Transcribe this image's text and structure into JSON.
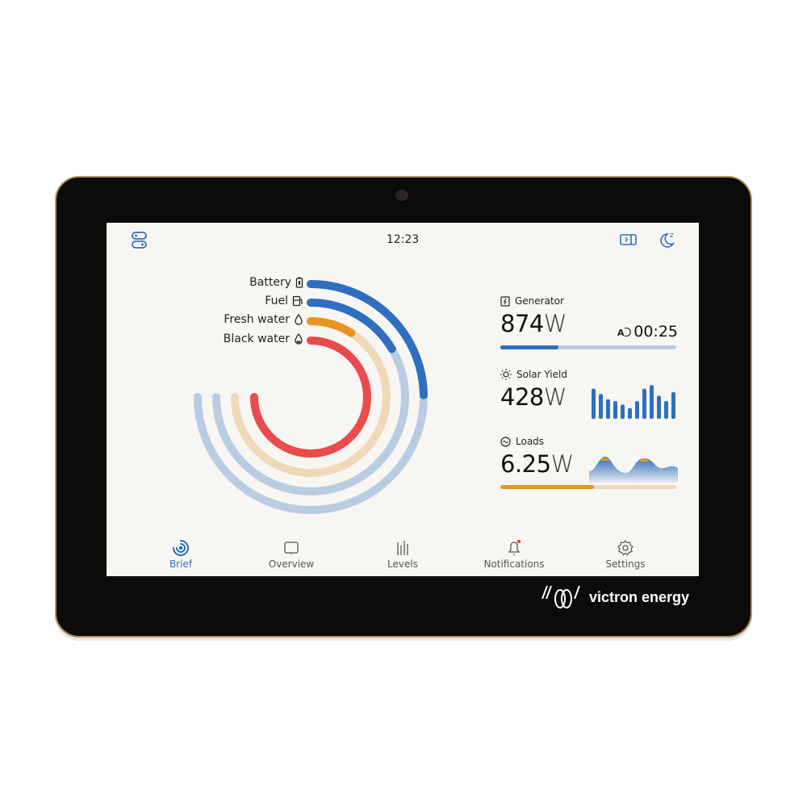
{
  "header": {
    "time": "12:23",
    "left_icon": "toggles-icon",
    "right_icons": [
      "sidebar-toggle-icon",
      "sleep-moon-icon"
    ]
  },
  "levels": [
    {
      "label": "Battery",
      "icon": "battery-icon",
      "percent": 33,
      "color": "#2f6fbf",
      "track": "#b9cde2"
    },
    {
      "label": "Fuel",
      "icon": "fuel-pump-icon",
      "percent": 22,
      "color": "#2f6fbf",
      "track": "#b9cde2"
    },
    {
      "label": "Fresh water",
      "icon": "water-drop-icon",
      "percent": 12,
      "color": "#e8941f",
      "track": "#efd9bb"
    },
    {
      "label": "Black water",
      "icon": "water-drop-icon",
      "percent": 100,
      "color": "#ea4b4b",
      "track": "#f6c8c8"
    }
  ],
  "generator": {
    "title": "Generator",
    "value": "874",
    "unit": "W",
    "runtime": "00:25",
    "progress": 0.33
  },
  "solar": {
    "title": "Solar Yield",
    "value": "428",
    "unit": "W",
    "bars": [
      0.85,
      0.7,
      0.55,
      0.5,
      0.4,
      0.3,
      0.5,
      0.85,
      0.95,
      0.65,
      0.5,
      0.75
    ]
  },
  "loads": {
    "title": "Loads",
    "value": "6.25",
    "unit": "W",
    "progress": 0.53
  },
  "nav": [
    {
      "label": "Brief",
      "active": true
    },
    {
      "label": "Overview"
    },
    {
      "label": "Levels"
    },
    {
      "label": "Notifications"
    },
    {
      "label": "Settings"
    }
  ],
  "brand": "victron energy",
  "colors": {
    "accent": "#2f6fbf",
    "orange": "#e8941f",
    "red": "#ea4b4b"
  }
}
